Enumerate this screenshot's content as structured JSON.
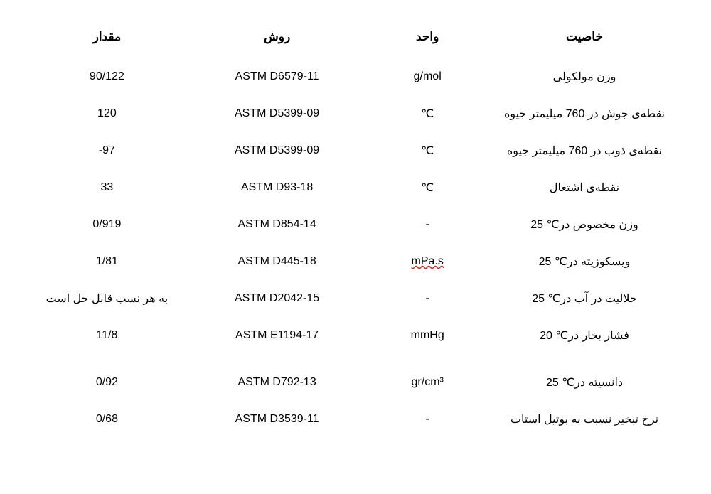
{
  "table": {
    "headers": {
      "value": "مقدار",
      "method": "روش",
      "unit": "واحد",
      "property": "خاصیت"
    },
    "rows": [
      {
        "value": "90/122",
        "method": "ASTM D6579-11",
        "unit": "g/mol",
        "property": "وزن مولکولی"
      },
      {
        "value": "120",
        "method": "ASTM D5399-09",
        "unit": "℃",
        "property": "نقطه‌ی جوش در 760 میلیمتر جیوه"
      },
      {
        "value": "-97",
        "method": "ASTM D5399-09",
        "unit": "℃",
        "property": "نقطه‌ی ذوب در 760 میلیمتر جیوه"
      },
      {
        "value": "33",
        "method": "ASTM D93-18",
        "unit": "℃",
        "property": "نقطه‌ی اشتعال"
      },
      {
        "value": "0/919",
        "method": "ASTM D854-14",
        "unit": "-",
        "property": "وزن مخصوص در℃ 25"
      },
      {
        "value": "1/81",
        "method": "ASTM D445-18",
        "unit": "mPa.s",
        "property": "ویسکوزیته در℃ 25"
      },
      {
        "value": "به هر نسب قابل حل است",
        "method": "ASTM D2042-15",
        "unit": "-",
        "property": "حلالیت در آب در℃ 25"
      },
      {
        "value": "11/8",
        "method": "ASTM E1194-17",
        "unit": "mmHg",
        "property": "فشار بخار در℃ 20"
      },
      {
        "value": "0/92",
        "method": "ASTM D792-13",
        "unit": "gr/cm³",
        "property": "دانسیته در℃ 25"
      },
      {
        "value": "0/68",
        "method": "ASTM D3539-11",
        "unit": "-",
        "property": "نرخ تبخیر نسبت به بوتیل استات"
      }
    ],
    "styling": {
      "header_fontsize": 17,
      "cell_fontsize": 16,
      "text_color": "#000000",
      "background_color": "#ffffff",
      "underline_row_index": 5,
      "underline_color": "#d93025",
      "gap_before_row_index": 8
    }
  }
}
